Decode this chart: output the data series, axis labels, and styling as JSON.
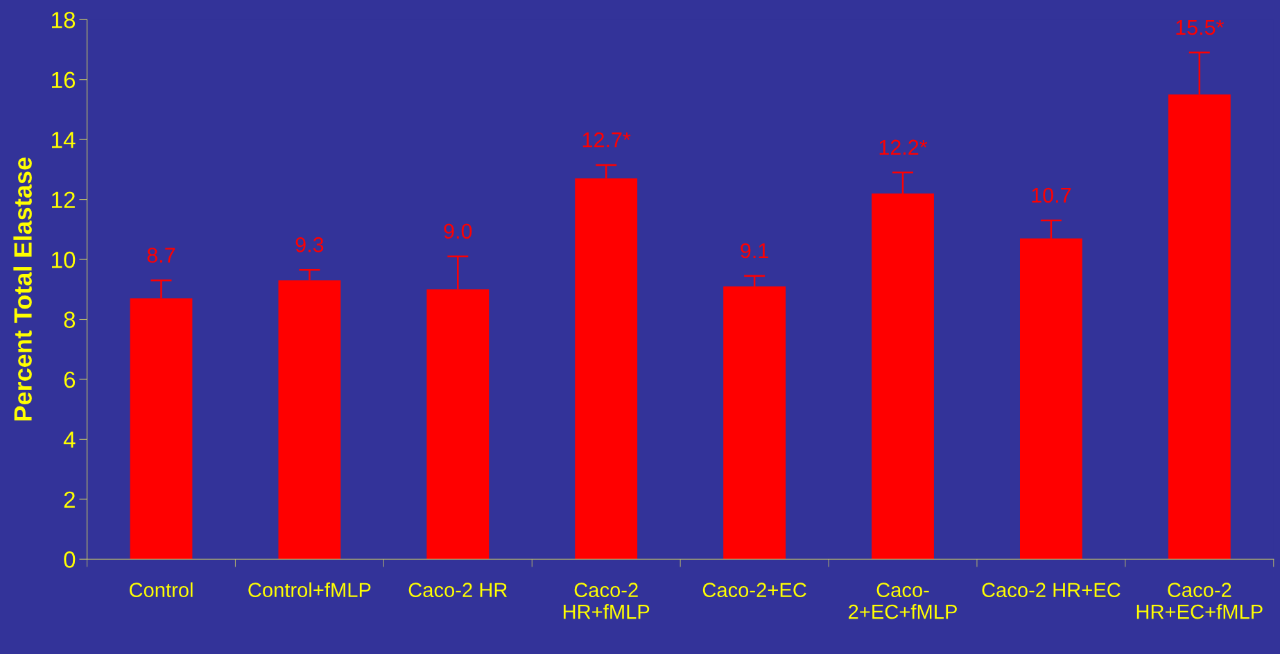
{
  "chart_data": {
    "type": "bar",
    "ylabel": "Percent Total Elastase",
    "categories": [
      "Control",
      "Control+fMLP",
      "Caco-2 HR",
      "Caco-2\nHR+fMLP",
      "Caco-2+EC",
      "Caco-\n2+EC+fMLP",
      "Caco-2 HR+EC",
      "Caco-2\nHR+EC+fMLP"
    ],
    "values": [
      8.7,
      9.3,
      9.0,
      12.7,
      9.1,
      12.2,
      10.7,
      15.5
    ],
    "errors": [
      [
        8.7,
        9.3
      ],
      [
        9.3,
        9.65
      ],
      [
        9.0,
        10.1
      ],
      [
        12.7,
        13.15
      ],
      [
        9.1,
        9.45
      ],
      [
        12.2,
        12.9
      ],
      [
        10.7,
        11.3
      ],
      [
        15.5,
        16.9
      ]
    ],
    "value_labels": [
      "8.7",
      "9.3",
      "9.0",
      "12.7*",
      "9.1",
      "12.2*",
      "10.7",
      "15.5*"
    ],
    "color": "#ff0000",
    "ylim": [
      0,
      18
    ],
    "yticks": [
      0,
      2,
      4,
      6,
      8,
      10,
      12,
      14,
      16,
      18
    ],
    "grid": false
  }
}
